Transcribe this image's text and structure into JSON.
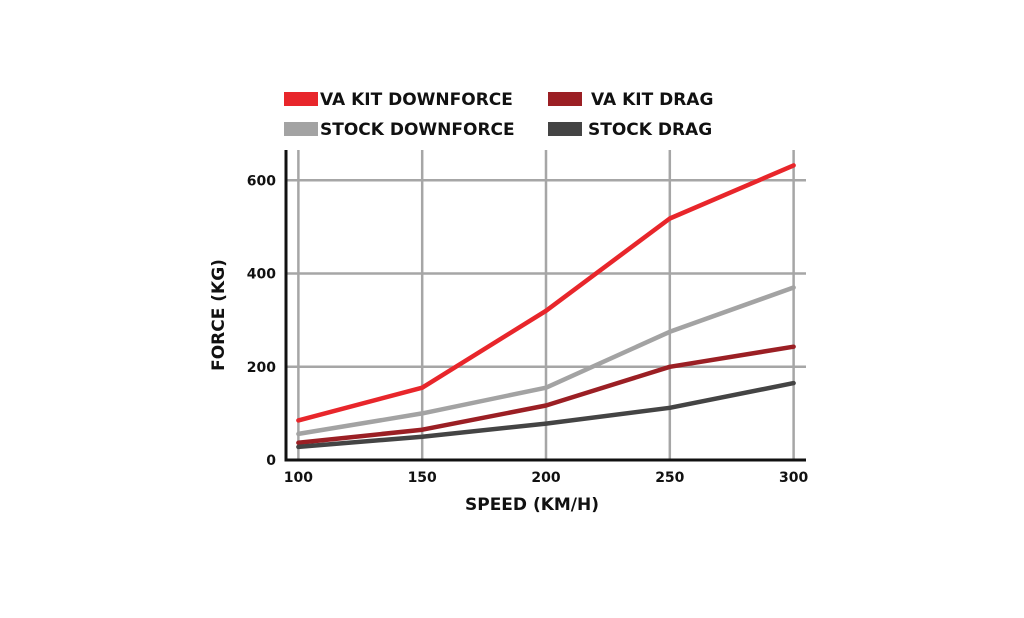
{
  "chart_data": {
    "type": "line",
    "title": "",
    "xlabel": "SPEED (KM/H)",
    "ylabel": "FORCE (KG)",
    "x": [
      100,
      150,
      200,
      250,
      300
    ],
    "xlim": [
      95,
      305
    ],
    "ylim": [
      0,
      665
    ],
    "xticks": [
      100,
      150,
      200,
      250,
      300
    ],
    "yticks": [
      0,
      200,
      400,
      600
    ],
    "grid": true,
    "legend_position": "top",
    "series": [
      {
        "name": "VA KIT DOWNFORCE",
        "color": "#e8262b",
        "values": [
          85,
          155,
          320,
          518,
          632
        ]
      },
      {
        "name": "VA KIT DRAG",
        "color": "#9b1f24",
        "values": [
          37,
          65,
          117,
          200,
          243
        ]
      },
      {
        "name": "STOCK DOWNFORCE",
        "color": "#a3a3a3",
        "values": [
          56,
          100,
          155,
          275,
          370
        ]
      },
      {
        "name": "STOCK DRAG",
        "color": "#444444",
        "values": [
          28,
          50,
          78,
          112,
          165
        ]
      }
    ]
  }
}
